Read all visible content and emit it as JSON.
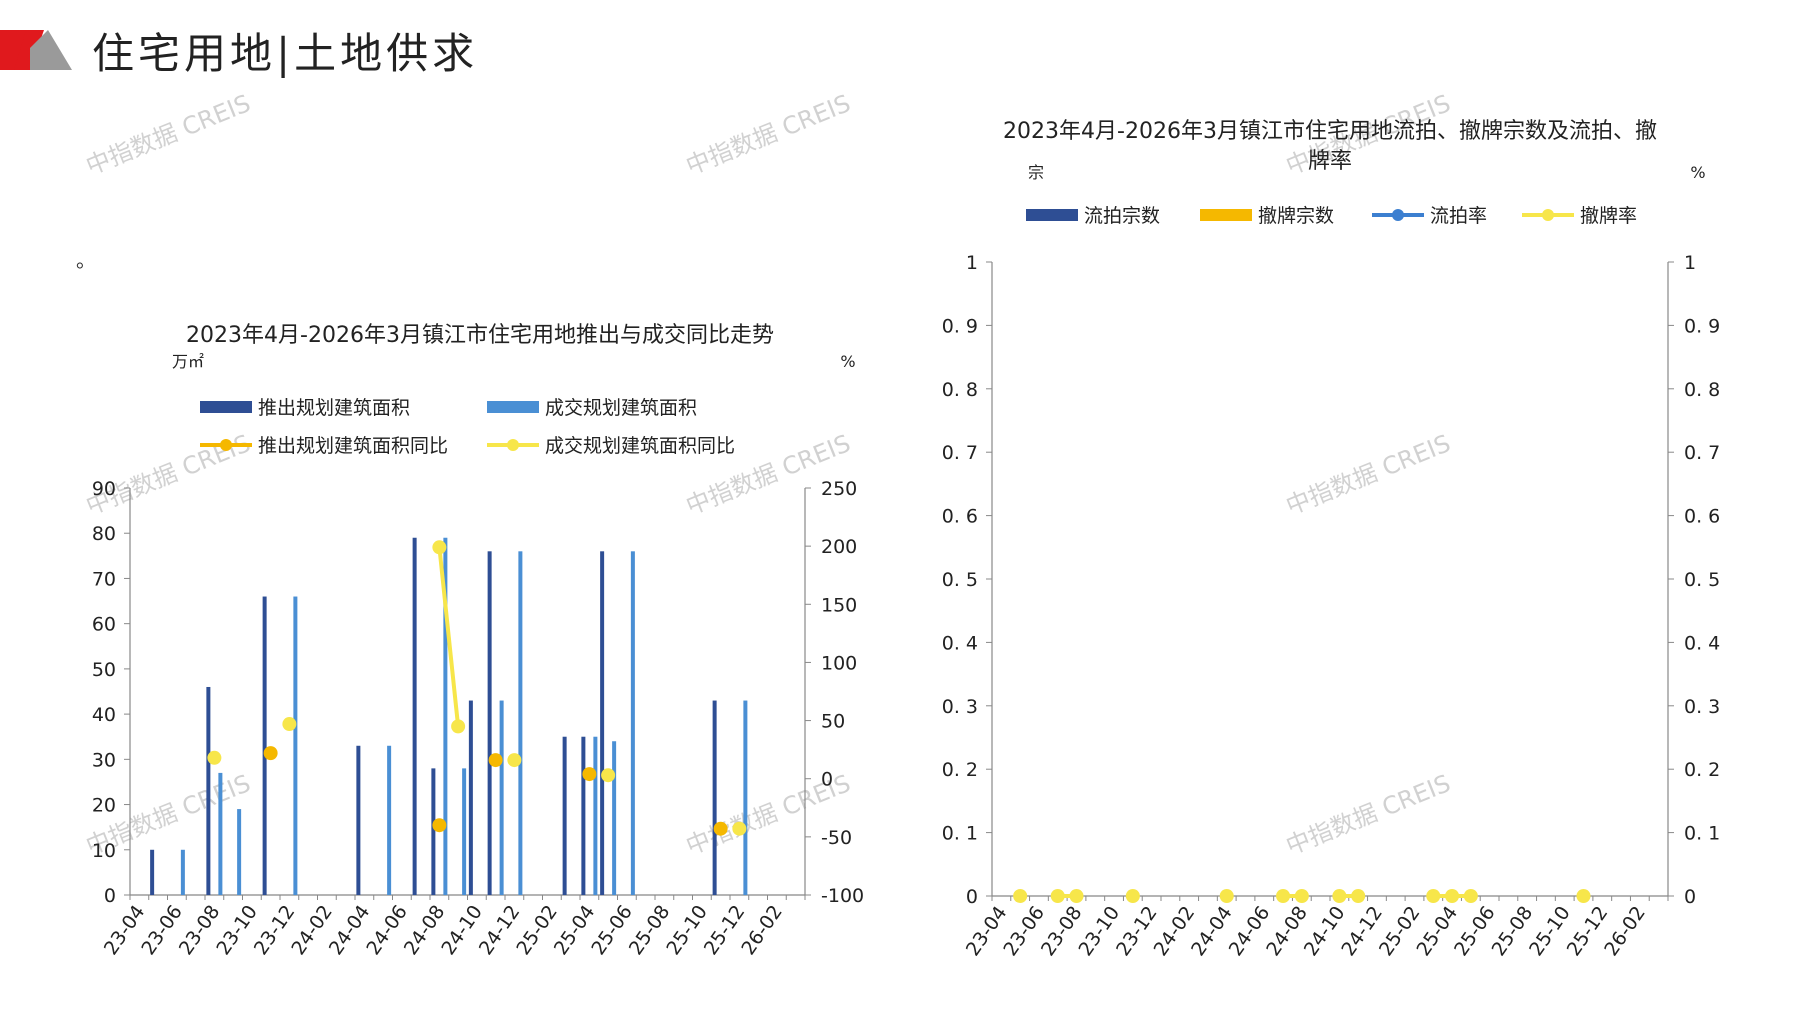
{
  "header": {
    "title": "住宅用地|土地供求",
    "colors": {
      "red": "#e0191d",
      "grey": "#7f7f7f"
    }
  },
  "note": "。",
  "watermark": "中指数据 CREIS",
  "chart_data": [
    {
      "type": "bar",
      "title": "2023年4月-2026年3月镇江市住宅用地推出与成交同比走势",
      "ylabel_left": "万㎡",
      "ylabel_right": "%",
      "ylim_left": [
        0,
        90
      ],
      "ylim_right": [
        -100,
        250
      ],
      "yticks_left": [
        0,
        10,
        20,
        30,
        40,
        50,
        60,
        70,
        80,
        90
      ],
      "yticks_right": [
        -100,
        -50,
        0,
        50,
        100,
        150,
        200,
        250
      ],
      "x_tick_labels": [
        "23-04",
        "23-06",
        "23-08",
        "23-10",
        "23-12",
        "24-02",
        "24-04",
        "24-06",
        "24-08",
        "24-10",
        "24-12",
        "25-02",
        "25-04",
        "25-06",
        "25-08",
        "25-10",
        "25-12",
        "26-02"
      ],
      "categories": [
        "23-04",
        "23-05",
        "23-06",
        "23-07",
        "23-08",
        "23-09",
        "23-10",
        "23-11",
        "23-12",
        "24-01",
        "24-02",
        "24-03",
        "24-04",
        "24-05",
        "24-06",
        "24-07",
        "24-08",
        "24-09",
        "24-10",
        "24-11",
        "24-12",
        "25-01",
        "25-02",
        "25-03",
        "25-04",
        "25-05",
        "25-06",
        "25-07",
        "25-08",
        "25-09",
        "25-10",
        "25-11",
        "25-12",
        "26-01",
        "26-02",
        "26-03"
      ],
      "legend": [
        "推出规划建筑面积",
        "成交规划建筑面积",
        "推出规划建筑面积同比",
        "成交规划建筑面积同比"
      ],
      "colors": [
        "#2e4e94",
        "#4a8fd4",
        "#f5b800",
        "#f7e64a"
      ],
      "bar_series": [
        {
          "name": "推出规划建筑面积",
          "axis": "left",
          "values": [
            0,
            10,
            0,
            0,
            46,
            0,
            0,
            66,
            0,
            0,
            0,
            0,
            33,
            0,
            0,
            79,
            28,
            0,
            43,
            76,
            0,
            0,
            0,
            35,
            35,
            76,
            0,
            0,
            0,
            0,
            0,
            43,
            0,
            0,
            0,
            0
          ]
        },
        {
          "name": "成交规划建筑面积",
          "axis": "left",
          "values": [
            0,
            0,
            10,
            0,
            27,
            19,
            0,
            0,
            66,
            0,
            0,
            0,
            0,
            33,
            0,
            0,
            79,
            28,
            0,
            43,
            76,
            0,
            0,
            0,
            35,
            34,
            76,
            0,
            0,
            0,
            0,
            0,
            43,
            0,
            0,
            0
          ]
        }
      ],
      "line_series": [
        {
          "name": "推出规划建筑面积同比",
          "axis": "right",
          "points": [
            [
              "23-11",
              22
            ],
            [
              "24-08",
              -40
            ],
            [
              "24-11",
              16
            ],
            [
              "25-04",
              4
            ],
            [
              "25-11",
              -43
            ]
          ]
        },
        {
          "name": "成交规划建筑面积同比",
          "axis": "right",
          "points": [
            [
              "23-08",
              18
            ],
            [
              "23-12",
              47
            ],
            [
              "24-08",
              199
            ],
            [
              "24-09",
              45
            ],
            [
              "24-12",
              16
            ],
            [
              "25-05",
              3
            ],
            [
              "25-12",
              -43
            ]
          ]
        }
      ]
    },
    {
      "type": "bar",
      "title": "2023年4月-2026年3月镇江市住宅用地流拍、撤牌宗数及流拍、撤牌率",
      "ylabel_left": "宗",
      "ylabel_right": "%",
      "ylim_left": [
        0,
        1
      ],
      "ylim_right": [
        0,
        1
      ],
      "yticks_left": [
        0,
        0.1,
        0.2,
        0.3,
        0.4,
        0.5,
        0.6,
        0.7,
        0.8,
        0.9,
        1
      ],
      "yticks_right": [
        0,
        0.1,
        0.2,
        0.3,
        0.4,
        0.5,
        0.6,
        0.7,
        0.8,
        0.9,
        1
      ],
      "x_tick_labels": [
        "23-04",
        "23-06",
        "23-08",
        "23-10",
        "23-12",
        "24-02",
        "24-04",
        "24-06",
        "24-08",
        "24-10",
        "24-12",
        "25-02",
        "25-04",
        "25-06",
        "25-08",
        "25-10",
        "25-12",
        "26-02"
      ],
      "categories": [
        "23-04",
        "23-05",
        "23-06",
        "23-07",
        "23-08",
        "23-09",
        "23-10",
        "23-11",
        "23-12",
        "24-01",
        "24-02",
        "24-03",
        "24-04",
        "24-05",
        "24-06",
        "24-07",
        "24-08",
        "24-09",
        "24-10",
        "24-11",
        "24-12",
        "25-01",
        "25-02",
        "25-03",
        "25-04",
        "25-05",
        "25-06",
        "25-07",
        "25-08",
        "25-09",
        "25-10",
        "25-11",
        "25-12",
        "26-01",
        "26-02",
        "26-03"
      ],
      "legend": [
        "流拍宗数",
        "撤牌宗数",
        "流拍率",
        "撤牌率"
      ],
      "colors": [
        "#2e4e94",
        "#f5b800",
        "#3c7fd0",
        "#f7e64a"
      ],
      "line_series": [
        {
          "name": "撤牌率",
          "axis": "right",
          "points": [
            [
              "23-05",
              0
            ],
            [
              "23-07",
              0
            ],
            [
              "23-08",
              0
            ],
            [
              "23-11",
              0
            ],
            [
              "24-04",
              0
            ],
            [
              "24-07",
              0
            ],
            [
              "24-08",
              0
            ],
            [
              "24-10",
              0
            ],
            [
              "24-11",
              0
            ],
            [
              "25-03",
              0
            ],
            [
              "25-04",
              0
            ],
            [
              "25-05",
              0
            ],
            [
              "25-11",
              0
            ]
          ]
        }
      ]
    }
  ]
}
